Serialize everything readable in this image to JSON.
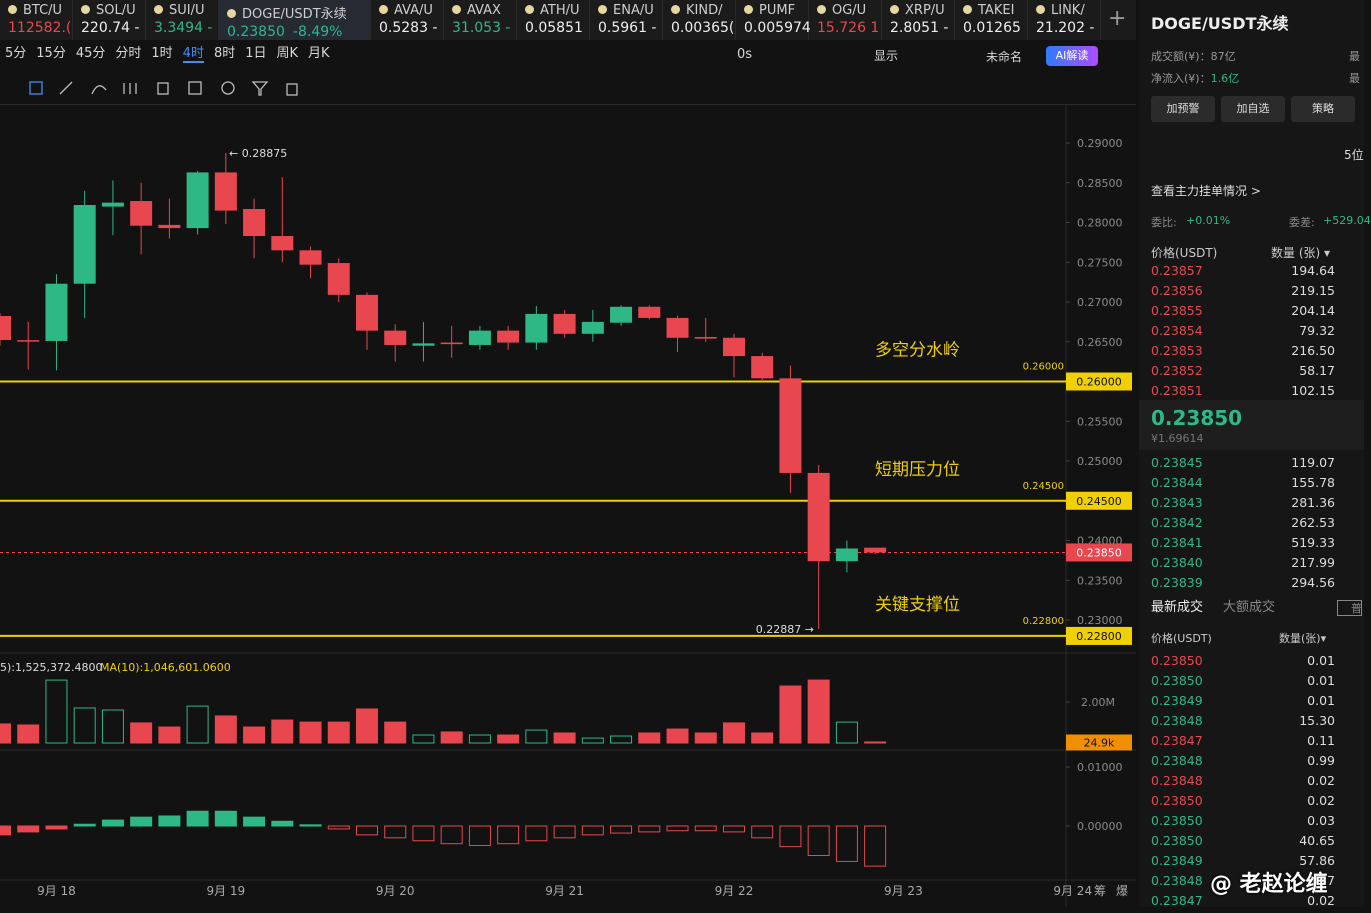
{
  "tabs": [
    {
      "name": "BTC/U",
      "price": "112582.(",
      "color": "red"
    },
    {
      "name": "SOL/U",
      "price": "220.74 -",
      "color": "white"
    },
    {
      "name": "SUI/U",
      "price": "3.3494 -",
      "color": "green"
    },
    {
      "name": "DOGE/USDT永续",
      "price": "0.23850",
      "change": "-8.49%",
      "color": "green"
    },
    {
      "name": "AVA/U",
      "price": "0.5283 -",
      "color": "white"
    },
    {
      "name": "AVAX",
      "price": "31.053 -",
      "color": "green"
    },
    {
      "name": "ATH/U",
      "price": "0.05851",
      "color": "white"
    },
    {
      "name": "ENA/U",
      "price": "0.5961 -",
      "color": "white"
    },
    {
      "name": "KIND/",
      "price": "0.00365(",
      "color": "white"
    },
    {
      "name": "PUMF",
      "price": "0.005974",
      "color": "white"
    },
    {
      "name": "OG/U",
      "price": "15.726 1",
      "color": "red"
    },
    {
      "name": "XRP/U",
      "price": "2.8051 -",
      "color": "white"
    },
    {
      "name": "TAKEI",
      "price": "0.01265",
      "color": "white"
    },
    {
      "name": "LINK/",
      "price": "21.202 -",
      "color": "white"
    }
  ],
  "timeframes": [
    "5分",
    "15分",
    "45分",
    "分时",
    "1时",
    "4时",
    "8时",
    "1日",
    "周K",
    "月K"
  ],
  "active_timeframe": 5,
  "toolbar": {
    "timer": "0s",
    "display": "显示",
    "layout": "未命名",
    "ai": "AI解读"
  },
  "chart": {
    "type": "candlestick",
    "ylim": [
      0.22623,
      0.29478
    ],
    "yticks": [
      {
        "value": 0.29,
        "label": "0.29000"
      },
      {
        "value": 0.285,
        "label": "0.28500"
      },
      {
        "value": 0.28,
        "label": "0.28000"
      },
      {
        "value": 0.275,
        "label": "0.27500"
      },
      {
        "value": 0.27,
        "label": "0.27000"
      },
      {
        "value": 0.265,
        "label": "0.26500"
      },
      {
        "value": 0.255,
        "label": "0.25500"
      },
      {
        "value": 0.25,
        "label": "0.25000"
      },
      {
        "value": 0.24,
        "label": "0.24000"
      },
      {
        "value": 0.235,
        "label": "0.23500"
      },
      {
        "value": 0.23,
        "label": "0.23000"
      }
    ],
    "levels": [
      {
        "value": 0.26,
        "label": "0.26000",
        "note": "多空分水岭"
      },
      {
        "value": 0.245,
        "label": "0.24500",
        "note": "短期压力位"
      },
      {
        "value": 0.228,
        "label": "0.22800",
        "note": "关键支撑位"
      }
    ],
    "last_price": {
      "value": 0.2385,
      "label": "0.23850"
    },
    "candles": [
      {
        "o": 0.26824,
        "h": 0.2686,
        "l": 0.2645,
        "c": 0.26522
      },
      {
        "o": 0.2652,
        "h": 0.2675,
        "l": 0.2615,
        "c": 0.2651
      },
      {
        "o": 0.2651,
        "h": 0.2735,
        "l": 0.2614,
        "c": 0.2723
      },
      {
        "o": 0.2723,
        "h": 0.284,
        "l": 0.268,
        "c": 0.2822
      },
      {
        "o": 0.282,
        "h": 0.2853,
        "l": 0.2784,
        "c": 0.2825
      },
      {
        "o": 0.2827,
        "h": 0.285,
        "l": 0.276,
        "c": 0.2796
      },
      {
        "o": 0.2797,
        "h": 0.283,
        "l": 0.278,
        "c": 0.2793
      },
      {
        "o": 0.2793,
        "h": 0.2865,
        "l": 0.2785,
        "c": 0.2863
      },
      {
        "o": 0.2863,
        "h": 0.28875,
        "l": 0.2798,
        "c": 0.2815
      },
      {
        "o": 0.2817,
        "h": 0.283,
        "l": 0.2755,
        "c": 0.2783
      },
      {
        "o": 0.2783,
        "h": 0.2857,
        "l": 0.275,
        "c": 0.2765
      },
      {
        "o": 0.2765,
        "h": 0.277,
        "l": 0.273,
        "c": 0.2747
      },
      {
        "o": 0.2749,
        "h": 0.2755,
        "l": 0.27,
        "c": 0.2709
      },
      {
        "o": 0.2709,
        "h": 0.2712,
        "l": 0.264,
        "c": 0.2664
      },
      {
        "o": 0.2664,
        "h": 0.2672,
        "l": 0.2625,
        "c": 0.2646
      },
      {
        "o": 0.2645,
        "h": 0.2675,
        "l": 0.2625,
        "c": 0.2648
      },
      {
        "o": 0.2649,
        "h": 0.267,
        "l": 0.263,
        "c": 0.2647
      },
      {
        "o": 0.2646,
        "h": 0.267,
        "l": 0.264,
        "c": 0.2664
      },
      {
        "o": 0.2664,
        "h": 0.267,
        "l": 0.264,
        "c": 0.2649
      },
      {
        "o": 0.2649,
        "h": 0.2695,
        "l": 0.264,
        "c": 0.2685
      },
      {
        "o": 0.2685,
        "h": 0.269,
        "l": 0.2655,
        "c": 0.266
      },
      {
        "o": 0.266,
        "h": 0.269,
        "l": 0.265,
        "c": 0.2675
      },
      {
        "o": 0.2674,
        "h": 0.2696,
        "l": 0.267,
        "c": 0.2694
      },
      {
        "o": 0.2694,
        "h": 0.2696,
        "l": 0.2678,
        "c": 0.268
      },
      {
        "o": 0.268,
        "h": 0.2683,
        "l": 0.2637,
        "c": 0.2655
      },
      {
        "o": 0.2656,
        "h": 0.268,
        "l": 0.265,
        "c": 0.2654
      },
      {
        "o": 0.2655,
        "h": 0.266,
        "l": 0.2605,
        "c": 0.2632
      },
      {
        "o": 0.2632,
        "h": 0.2636,
        "l": 0.26,
        "c": 0.2604
      },
      {
        "o": 0.2604,
        "h": 0.262,
        "l": 0.246,
        "c": 0.2485
      },
      {
        "o": 0.2485,
        "h": 0.2495,
        "l": 0.22887,
        "c": 0.2374
      },
      {
        "o": 0.2374,
        "h": 0.24,
        "l": 0.236,
        "c": 0.239
      },
      {
        "o": 0.2391,
        "h": 0.2391,
        "l": 0.2383,
        "c": 0.2385
      }
    ],
    "dates": [
      "9月 18",
      "9月 19",
      "9月 20",
      "9月 21",
      "9月 22",
      "9月 23",
      "9月 24"
    ],
    "volume": {
      "legend": [
        "5):1,525,372.4800",
        "MA(10):1,046,601.0600"
      ],
      "ylim": [
        0,
        4.05
      ],
      "yticks": [
        {
          "value": 2,
          "label": "2.00M"
        }
      ],
      "last": {
        "value": 0.0249,
        "label": "24.9k"
      },
      "values": [
        0.93,
        0.88,
        3.07,
        1.71,
        1.61,
        0.98,
        0.78,
        1.8,
        1.32,
        0.78,
        1.12,
        1.02,
        1.02,
        1.66,
        1.02,
        0.39,
        0.54,
        0.39,
        0.39,
        0.63,
        0.49,
        0.24,
        0.34,
        0.49,
        0.68,
        0.49,
        0.98,
        0.49,
        2.78,
        3.07,
        1.02,
        0.05
      ]
    },
    "macd": {
      "ylim": [
        -0.00915,
        0.01254
      ],
      "yticks": [
        {
          "value": 0.01,
          "label": "0.01000"
        },
        {
          "value": 0,
          "label": "0.00000"
        }
      ],
      "values": [
        -0.0015,
        -0.001,
        -0.0005,
        0.0003,
        0.001,
        0.0015,
        0.0017,
        0.0025,
        0.0025,
        0.0015,
        0.0008,
        0.0002,
        -0.0005,
        -0.0015,
        -0.002,
        -0.0025,
        -0.003,
        -0.0033,
        -0.003,
        -0.0025,
        -0.002,
        -0.0015,
        -0.0012,
        -0.001,
        -0.0008,
        -0.0008,
        -0.001,
        -0.002,
        -0.0035,
        -0.005,
        -0.006,
        -0.0068
      ]
    },
    "corner": [
      "筹",
      "爆"
    ]
  },
  "panel": {
    "title": "DOGE/USDT永续",
    "turnover": "成交额(¥)：87亿",
    "inflow_label": "净流入(¥)：",
    "inflow": "1.6亿",
    "cut": [
      "最",
      "最"
    ],
    "buttons": [
      "加预警",
      "加自选",
      "策略"
    ],
    "depth": "5位",
    "main_orders": "查看主力挂单情况 >",
    "ratio_label": "委比:",
    "ratio": "+0.01%",
    "diff_label": "委差:",
    "diff": "+529.04",
    "book_header": [
      "价格(USDT)",
      "数量 (张) ▾"
    ],
    "asks": [
      [
        "0.23857",
        "194.64"
      ],
      [
        "0.23856",
        "219.15"
      ],
      [
        "0.23855",
        "204.14"
      ],
      [
        "0.23854",
        "79.32"
      ],
      [
        "0.23853",
        "216.50"
      ],
      [
        "0.23852",
        "58.17"
      ],
      [
        "0.23851",
        "102.15"
      ]
    ],
    "mid": "0.23850",
    "mid_cny": "¥1.69614",
    "bids": [
      [
        "0.23845",
        "119.07"
      ],
      [
        "0.23844",
        "155.78"
      ],
      [
        "0.23843",
        "281.36"
      ],
      [
        "0.23842",
        "262.53"
      ],
      [
        "0.23841",
        "519.33"
      ],
      [
        "0.23840",
        "217.99"
      ],
      [
        "0.23839",
        "294.56"
      ]
    ],
    "trade_tabs": [
      "最新成交",
      "大额成交"
    ],
    "trade_opt": "普",
    "trade_header": [
      "价格(USDT)",
      "数量(张)▾"
    ],
    "trades": [
      [
        "0.23850",
        "0.01",
        "red"
      ],
      [
        "0.23850",
        "0.01",
        "green"
      ],
      [
        "0.23849",
        "0.01",
        "green"
      ],
      [
        "0.23848",
        "15.30",
        "green"
      ],
      [
        "0.23847",
        "0.11",
        "red"
      ],
      [
        "0.23848",
        "0.99",
        "green"
      ],
      [
        "0.23848",
        "0.02",
        "red"
      ],
      [
        "0.23850",
        "0.02",
        "red"
      ],
      [
        "0.23850",
        "0.03",
        "green"
      ],
      [
        "0.23850",
        "40.65",
        "green"
      ],
      [
        "0.23849",
        "57.86",
        "green"
      ],
      [
        "0.23848",
        "0.37",
        "green"
      ],
      [
        "0.23847",
        "0.02",
        "green"
      ]
    ]
  },
  "watermark": "@ 老赵论缠"
}
